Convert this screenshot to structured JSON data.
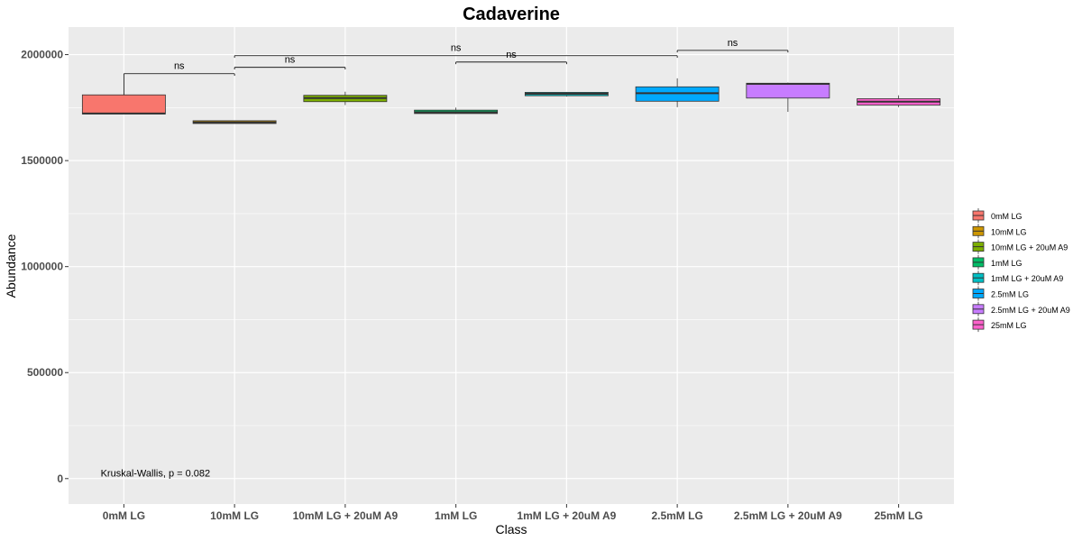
{
  "chart_data": {
    "type": "box",
    "title": "Cadaverine",
    "xlabel": "Class",
    "ylabel": "Abundance",
    "ylim": [
      -120000,
      2130000
    ],
    "yticks": [
      0,
      500000,
      1000000,
      1500000,
      2000000
    ],
    "ytick_labels": [
      "0",
      "500000",
      "1000000",
      "1500000",
      "2000000"
    ],
    "grid": true,
    "legend_position": "right",
    "categories": [
      "0mM LG",
      "10mM LG",
      "10mM LG + 20uM A9",
      "1mM LG",
      "1mM LG + 20uM A9",
      "2.5mM LG",
      "2.5mM LG + 20uM A9",
      "25mM LG"
    ],
    "colors": [
      "#F8766D",
      "#CD9600",
      "#7CAE00",
      "#00BE67",
      "#00BFC4",
      "#00A9FF",
      "#C77CFF",
      "#FF61CC"
    ],
    "boxes": [
      {
        "whisker_low": 1720000,
        "q1": 1720000,
        "median": 1722000,
        "q3": 1810000,
        "whisker_high": 1810000
      },
      {
        "whisker_low": 1675000,
        "q1": 1675000,
        "median": 1680000,
        "q3": 1688000,
        "whisker_high": 1688000
      },
      {
        "whisker_low": 1762000,
        "q1": 1778000,
        "median": 1795000,
        "q3": 1808000,
        "whisker_high": 1825000
      },
      {
        "whisker_low": 1720000,
        "q1": 1722000,
        "median": 1728000,
        "q3": 1738000,
        "whisker_high": 1750000
      },
      {
        "whisker_low": 1802000,
        "q1": 1806000,
        "median": 1815000,
        "q3": 1822000,
        "whisker_high": 1824000
      },
      {
        "whisker_low": 1752000,
        "q1": 1780000,
        "median": 1818000,
        "q3": 1848000,
        "whisker_high": 1888000
      },
      {
        "whisker_low": 1730000,
        "q1": 1795000,
        "median": 1862000,
        "q3": 1865000,
        "whisker_high": 1868000
      },
      {
        "whisker_low": 1752000,
        "q1": 1762000,
        "median": 1778000,
        "q3": 1792000,
        "whisker_high": 1808000
      }
    ],
    "comparisons": [
      {
        "from": 0,
        "to": 1,
        "y": 1910000,
        "label": "ns",
        "drop_from": 1810000,
        "drop_to": 1900000
      },
      {
        "from": 1,
        "to": 2,
        "y": 1940000,
        "label": "ns",
        "drop_from": 1930000,
        "drop_to": 1930000
      },
      {
        "from": 1,
        "to": 5,
        "y": 1995000,
        "label": "ns",
        "drop_from": 1985000,
        "drop_to": 1985000
      },
      {
        "from": 3,
        "to": 4,
        "y": 1965000,
        "label": "ns",
        "drop_from": 1955000,
        "drop_to": 1955000
      },
      {
        "from": 5,
        "to": 6,
        "y": 2020000,
        "label": "ns",
        "drop_from": 2010000,
        "drop_to": 2010000
      }
    ],
    "annotation": "Kruskal-Wallis, p = 0.082",
    "annotation_anchor": {
      "category": 0,
      "y": 10000
    }
  }
}
